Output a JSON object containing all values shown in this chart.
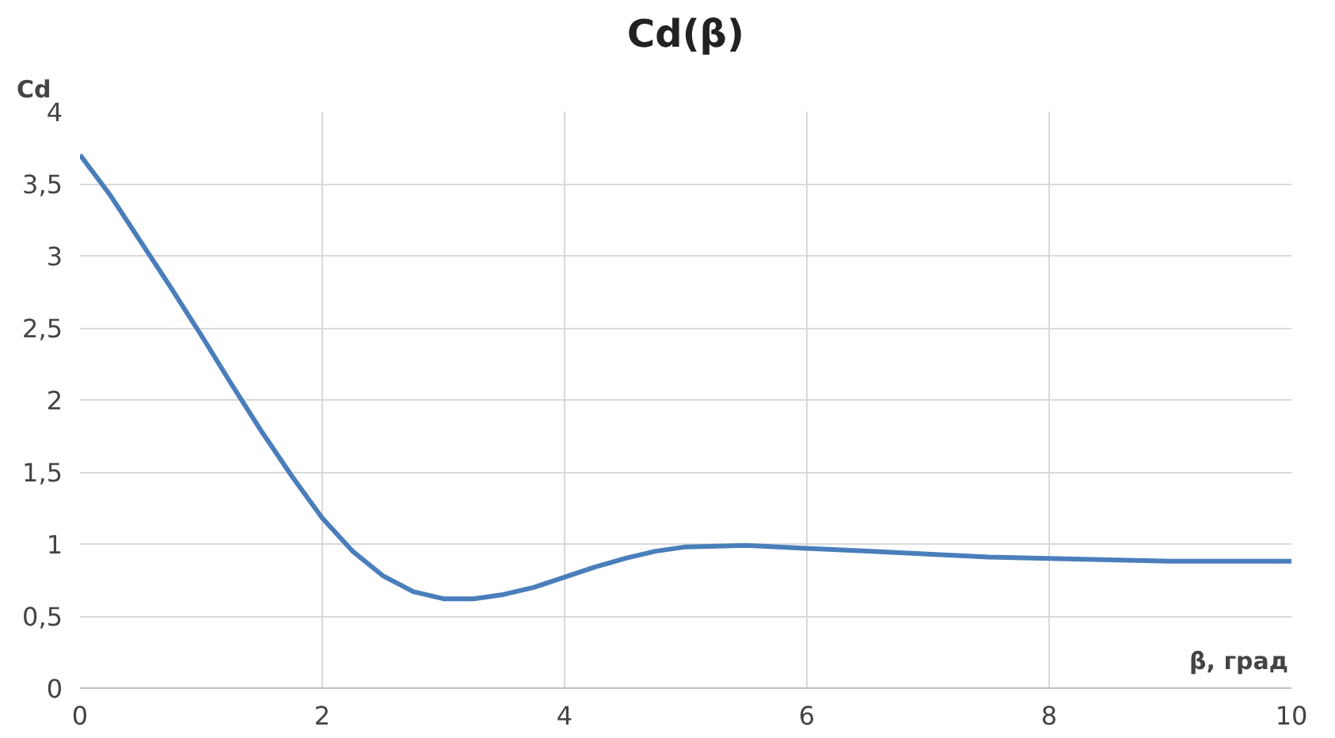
{
  "chart_data": {
    "type": "line",
    "title": "Cd(β)",
    "ylabel": "Cd",
    "xlabel": "β, град",
    "x": [
      0,
      0.25,
      0.5,
      0.75,
      1,
      1.25,
      1.5,
      1.75,
      2,
      2.25,
      2.5,
      2.75,
      3,
      3.25,
      3.5,
      3.75,
      4,
      4.25,
      4.5,
      4.75,
      5,
      5.5,
      6,
      6.5,
      7,
      7.5,
      8,
      8.5,
      9,
      9.5,
      10
    ],
    "series": [
      {
        "color": "#4a7ebb",
        "values": [
          3.7,
          3.42,
          3.1,
          2.78,
          2.45,
          2.11,
          1.78,
          1.47,
          1.18,
          0.95,
          0.78,
          0.67,
          0.62,
          0.62,
          0.65,
          0.7,
          0.77,
          0.84,
          0.9,
          0.95,
          0.98,
          0.99,
          0.97,
          0.95,
          0.93,
          0.91,
          0.9,
          0.89,
          0.88,
          0.88,
          0.88
        ]
      }
    ],
    "xlim": [
      0,
      10
    ],
    "xticks": [
      0,
      2,
      4,
      6,
      8,
      10
    ],
    "ylim": [
      0,
      4
    ],
    "yticks": [
      0,
      {
        "value": 0.5,
        "label": "0,5"
      },
      1,
      {
        "value": 1.5,
        "label": "1,5"
      },
      2,
      {
        "value": 2.5,
        "label": "2,5"
      },
      3,
      {
        "value": 3.5,
        "label": "3,5"
      },
      4
    ],
    "grid": true,
    "line_style": "solid"
  }
}
